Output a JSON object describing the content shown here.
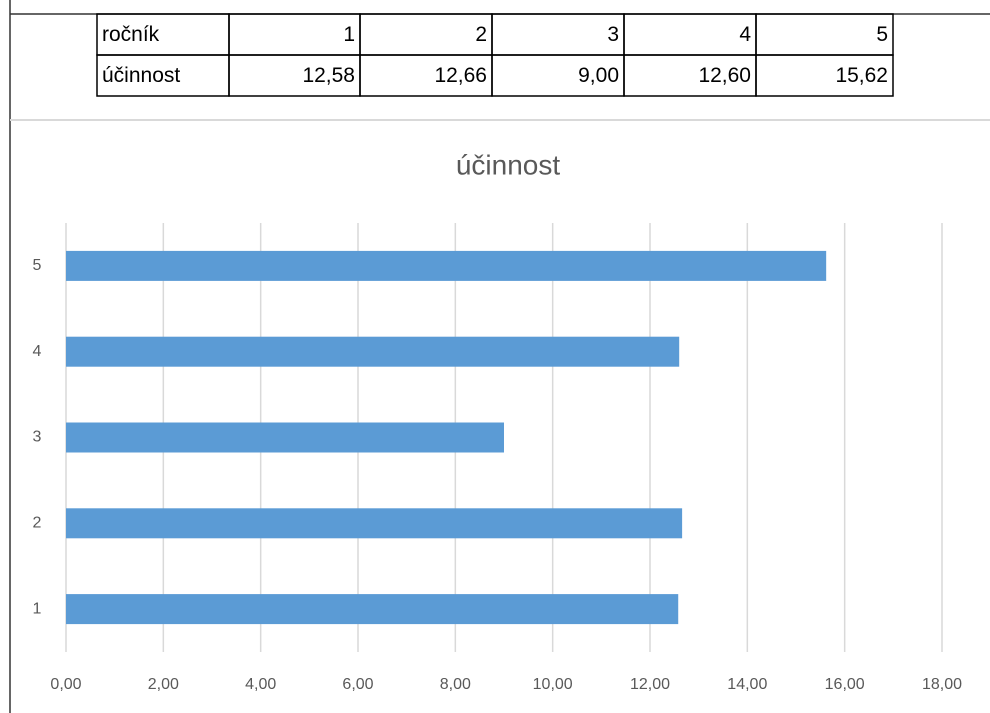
{
  "table": {
    "rows": [
      [
        "ročník",
        "1",
        "2",
        "3",
        "4",
        "5"
      ],
      [
        "účinnost",
        "12,58",
        "12,66",
        "9,00",
        "12,60",
        "15,62"
      ]
    ]
  },
  "chart_data": {
    "type": "barh",
    "title": "účinnost",
    "categories": [
      "1",
      "2",
      "3",
      "4",
      "5"
    ],
    "values": [
      12.58,
      12.66,
      9.0,
      12.6,
      15.62
    ],
    "color": "#5b9bd5",
    "xlim": [
      0,
      18
    ],
    "xticks": [
      {
        "value": 0,
        "label": "0,00"
      },
      {
        "value": 2,
        "label": "2,00"
      },
      {
        "value": 4,
        "label": "4,00"
      },
      {
        "value": 6,
        "label": "6,00"
      },
      {
        "value": 8,
        "label": "8,00"
      },
      {
        "value": 10,
        "label": "10,00"
      },
      {
        "value": 12,
        "label": "12,00"
      },
      {
        "value": 14,
        "label": "14,00"
      },
      {
        "value": 16,
        "label": "16,00"
      },
      {
        "value": 18,
        "label": "18,00"
      }
    ],
    "grid": true
  }
}
